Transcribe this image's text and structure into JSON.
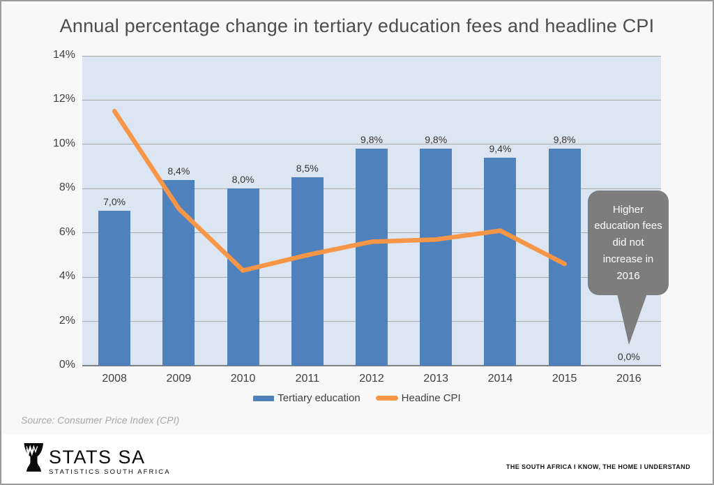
{
  "title": "Annual percentage change in tertiary education fees and headline CPI",
  "chart_data": {
    "type": "bar",
    "title": "Annual percentage change in tertiary education fees and headline CPI",
    "categories": [
      "2008",
      "2009",
      "2010",
      "2011",
      "2012",
      "2013",
      "2014",
      "2015",
      "2016"
    ],
    "series": [
      {
        "name": "Tertiary education",
        "type": "bar",
        "color": "#4f81bd",
        "values": [
          7.0,
          8.4,
          8.0,
          8.5,
          9.8,
          9.8,
          9.4,
          9.8,
          0.0
        ],
        "data_labels": [
          "7,0%",
          "8,4%",
          "8,0%",
          "8,5%",
          "9,8%",
          "9,8%",
          "9,4%",
          "9,8%",
          "0,0%"
        ]
      },
      {
        "name": "Headine CPI",
        "type": "line",
        "color": "#f79646",
        "values": [
          11.5,
          7.1,
          4.3,
          5.0,
          5.6,
          5.7,
          6.1,
          4.6,
          null
        ]
      }
    ],
    "ylim": [
      0,
      14
    ],
    "yticks": [
      0,
      2,
      4,
      6,
      8,
      10,
      12,
      14
    ],
    "ytick_labels": [
      "0%",
      "2%",
      "4%",
      "6%",
      "8%",
      "10%",
      "12%",
      "14%"
    ],
    "grid": true,
    "legend_position": "bottom",
    "plot_bg": "#dce6f2",
    "gridline_color": "#a9a9a9",
    "axis_line_color": "#7f7f7f"
  },
  "annotation": {
    "text": "Higher education fees did not increase in 2016",
    "bg": "#7d7d7d",
    "text_color": "#ffffff"
  },
  "source": "Source: Consumer Price Index (CPI)",
  "footer": {
    "logo_title": "STATS SA",
    "logo_subtitle": "STATISTICS SOUTH AFRICA",
    "tagline": "THE SOUTH AFRICA I KNOW, THE HOME I UNDERSTAND"
  }
}
